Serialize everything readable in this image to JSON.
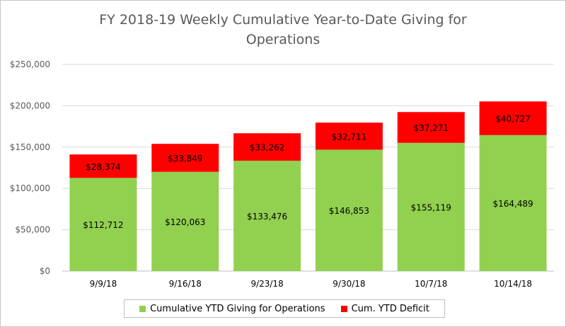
{
  "chart_data": {
    "type": "bar",
    "stacked": true,
    "title_lines": [
      "FY 2018-19 Weekly Cumulative Year-to-Date Giving for",
      "Operations"
    ],
    "categories": [
      "9/9/18",
      "9/16/18",
      "9/23/18",
      "9/30/18",
      "10/7/18",
      "10/14/18"
    ],
    "series": [
      {
        "name": "Cumulative YTD Giving for Operations",
        "color": "#92d050",
        "values": [
          112712,
          120063,
          133476,
          146853,
          155119,
          164489
        ],
        "labels": [
          "$112,712",
          "$120,063",
          "$133,476",
          "$146,853",
          "$155,119",
          "$164,489"
        ]
      },
      {
        "name": "Cum. YTD Deficit",
        "color": "#ff0000",
        "values": [
          28374,
          33849,
          33262,
          32711,
          37271,
          40727
        ],
        "labels": [
          "$28,374",
          "$33,849",
          "$33,262",
          "$32,711",
          "$37,271",
          "$40,727"
        ]
      }
    ],
    "ylim": [
      0,
      250000
    ],
    "yticks": [
      0,
      50000,
      100000,
      150000,
      200000,
      250000
    ],
    "ytick_labels": [
      "$0",
      "$50,000",
      "$100,000",
      "$150,000",
      "$200,000",
      "$250,000"
    ],
    "grid": true,
    "legend_position": "bottom"
  }
}
